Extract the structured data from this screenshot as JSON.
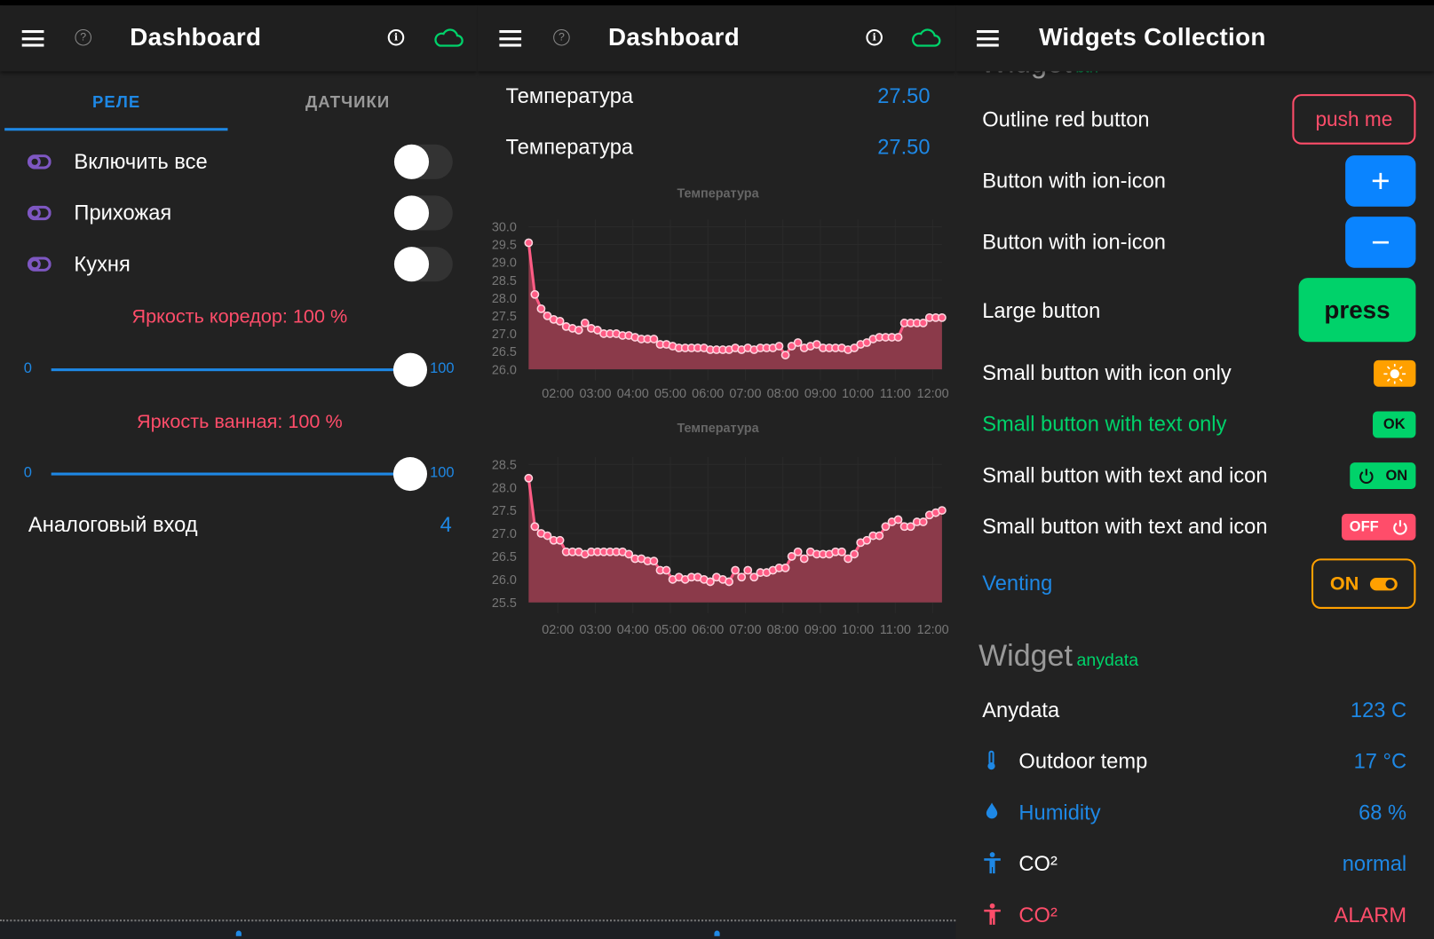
{
  "colors": {
    "accent": "#1e88e5",
    "danger": "#ff4d6a",
    "success": "#00d26a",
    "warning": "#ffa000",
    "relay_icon": "#7e57c2",
    "chart_line": "#ff5c85",
    "chart_fill": "#8b3a4a"
  },
  "left": {
    "header": {
      "title": "Dashboard",
      "icons": [
        "menu-icon",
        "help-icon",
        "info-icon",
        "cloud-icon"
      ]
    },
    "tabs": [
      {
        "label": "РЕЛЕ",
        "active": true
      },
      {
        "label": "ДАТЧИКИ",
        "active": false
      }
    ],
    "relays": [
      {
        "label": "Включить все",
        "on": false
      },
      {
        "label": "Прихожая",
        "on": false
      },
      {
        "label": "Кухня",
        "on": false
      }
    ],
    "sliders": [
      {
        "label": "Яркость коредор: 100 %",
        "min": "0",
        "max": "100",
        "value": 100
      },
      {
        "label": "Яркость ванная: 100 %",
        "min": "0",
        "max": "100",
        "value": 100
      }
    ],
    "analog": {
      "label": "Аналоговый вход",
      "value": "4"
    }
  },
  "middle": {
    "header": {
      "title": "Dashboard"
    },
    "readings": [
      {
        "label": "Температура",
        "value": "27.50"
      },
      {
        "label": "Температура",
        "value": "27.50"
      }
    ]
  },
  "right": {
    "header": {
      "title": "Widgets Collection"
    },
    "hidden_section": {
      "title": "Widget",
      "tag": "btn"
    },
    "buttons": [
      {
        "label": "Outline red button",
        "button": "push me"
      },
      {
        "label": "Button with ion-icon",
        "button": "+",
        "icon": "plus-icon"
      },
      {
        "label": "Button with ion-icon",
        "button": "−",
        "icon": "minus-icon"
      },
      {
        "label": "Large button",
        "button": "press"
      },
      {
        "label": "Small button with icon only",
        "icon": "sun-icon"
      },
      {
        "label": "Small button with text only",
        "button": "OK"
      },
      {
        "label": "Small button with text and icon",
        "button": "ON",
        "icon": "power-icon"
      },
      {
        "label": "Small button with text and icon",
        "button": "OFF",
        "icon": "power-icon"
      },
      {
        "label": "Venting",
        "button": "ON",
        "icon": "toggle-icon"
      }
    ],
    "anydata_section": {
      "title": "Widget",
      "tag": "anydata"
    },
    "anydata": [
      {
        "label": "Anydata",
        "value": "123 C"
      },
      {
        "label": "Outdoor temp",
        "value": "17 °C",
        "icon": "thermometer-icon"
      },
      {
        "label": "Humidity",
        "value": "68 %",
        "icon": "water-drop-icon"
      },
      {
        "label": "CO²",
        "value": "normal",
        "icon": "person-icon"
      },
      {
        "label": "CO²",
        "value": "ALARM",
        "icon": "person-icon"
      }
    ]
  },
  "chart_data": [
    {
      "type": "area",
      "title": "Температура",
      "ylim": [
        26.0,
        30.0
      ],
      "yticks": [
        "30.0",
        "29.5",
        "29.0",
        "28.5",
        "28.0",
        "27.5",
        "27.0",
        "26.5",
        "26.0"
      ],
      "xticks": [
        "02:00",
        "03:00",
        "04:00",
        "05:00",
        "06:00",
        "07:00",
        "08:00",
        "09:00",
        "10:00",
        "11:00",
        "12:00"
      ],
      "grid": true,
      "values": [
        29.55,
        28.1,
        27.7,
        27.5,
        27.4,
        27.35,
        27.2,
        27.15,
        27.1,
        27.3,
        27.15,
        27.1,
        27.0,
        27.0,
        27.0,
        26.95,
        26.95,
        26.9,
        26.85,
        26.85,
        26.85,
        26.7,
        26.7,
        26.65,
        26.6,
        26.6,
        26.6,
        26.6,
        26.6,
        26.55,
        26.55,
        26.55,
        26.55,
        26.6,
        26.55,
        26.6,
        26.55,
        26.6,
        26.6,
        26.6,
        26.65,
        26.4,
        26.65,
        26.75,
        26.6,
        26.65,
        26.7,
        26.6,
        26.6,
        26.6,
        26.6,
        26.55,
        26.6,
        26.7,
        26.75,
        26.85,
        26.9,
        26.9,
        26.9,
        26.9,
        27.3,
        27.3,
        27.3,
        27.3,
        27.45,
        27.45,
        27.45
      ]
    },
    {
      "type": "area",
      "title": "Температура",
      "ylim": [
        25.5,
        28.5
      ],
      "yticks": [
        "28.5",
        "28.0",
        "27.5",
        "27.0",
        "26.5",
        "26.0",
        "25.5"
      ],
      "xticks": [
        "02:00",
        "03:00",
        "04:00",
        "05:00",
        "06:00",
        "07:00",
        "08:00",
        "09:00",
        "10:00",
        "11:00",
        "12:00"
      ],
      "grid": true,
      "values": [
        28.2,
        27.15,
        27.0,
        26.95,
        26.85,
        26.85,
        26.6,
        26.6,
        26.6,
        26.55,
        26.6,
        26.6,
        26.6,
        26.6,
        26.6,
        26.6,
        26.55,
        26.45,
        26.45,
        26.4,
        26.4,
        26.2,
        26.2,
        26.0,
        26.05,
        26.0,
        26.05,
        26.05,
        26.0,
        25.95,
        26.05,
        26.0,
        25.95,
        26.2,
        26.05,
        26.2,
        26.05,
        26.15,
        26.15,
        26.2,
        26.25,
        26.25,
        26.5,
        26.6,
        26.45,
        26.6,
        26.55,
        26.55,
        26.55,
        26.6,
        26.6,
        26.45,
        26.55,
        26.8,
        26.85,
        26.95,
        26.95,
        27.15,
        27.25,
        27.3,
        27.15,
        27.15,
        27.25,
        27.25,
        27.4,
        27.45,
        27.5
      ]
    }
  ]
}
